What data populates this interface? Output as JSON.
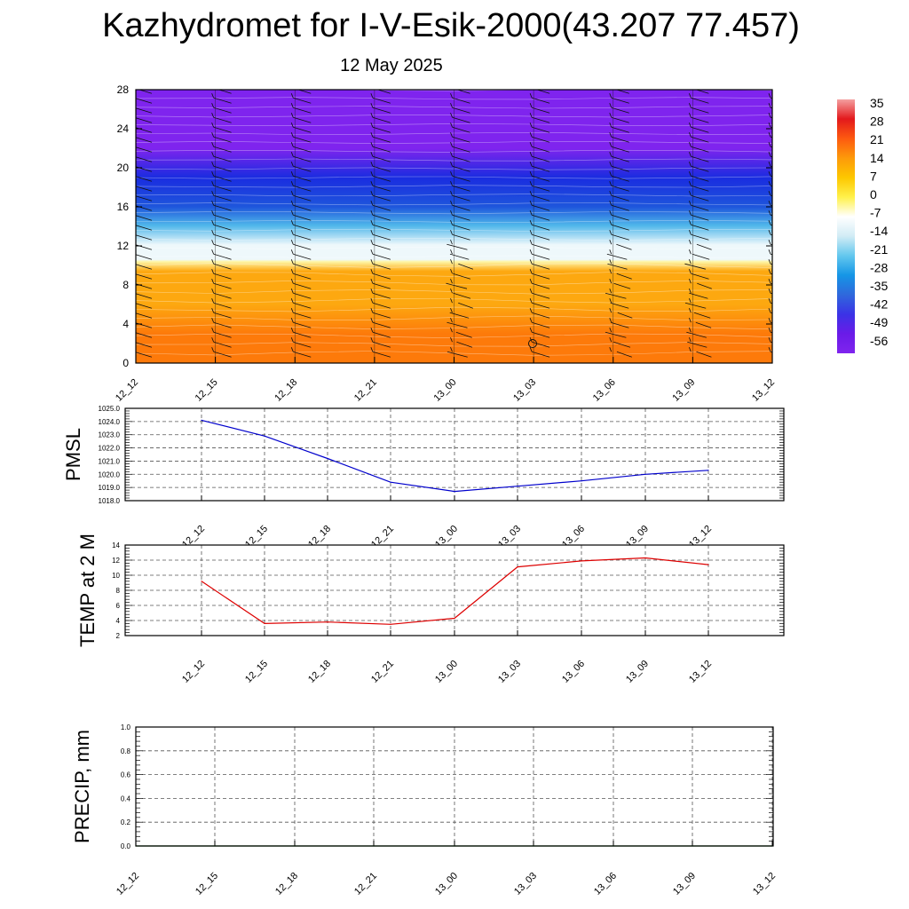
{
  "title": "Kazhydromet for I-V-Esik-2000(43.207 77.457)",
  "date": "12 May 2025",
  "chart_data": [
    {
      "type": "heatmap",
      "name": "cross-section",
      "title": "",
      "xlabel": "",
      "ylabel": "",
      "x_ticks": [
        "12_12",
        "12_15",
        "12_18",
        "12_21",
        "13_00",
        "13_03",
        "13_06",
        "13_09",
        "13_12"
      ],
      "y_ticks": [
        0,
        4,
        8,
        12,
        16,
        20,
        24,
        28
      ],
      "ylim": [
        0,
        28
      ],
      "freezing_level": 10.6,
      "colorbar": {
        "labels": [
          "35",
          "28",
          "21",
          "14",
          "7",
          "0",
          "-7",
          "-14",
          "-21",
          "-28",
          "-35",
          "-42",
          "-49",
          "-56"
        ],
        "colors": [
          "#f4a0a0",
          "#e3191c",
          "#fd5a10",
          "#fd9a0a",
          "#fdc700",
          "#fff14b",
          "#ffffff",
          "#d2ecf5",
          "#64c8ee",
          "#1596e6",
          "#2f68dc",
          "#3b33e6",
          "#6a1be8",
          "#7f24ee"
        ]
      },
      "fill_colors": {
        "bottom": "#fd7a0a",
        "lower": "#fda810",
        "near_zero": "#fef6a8",
        "freezing": "#eef8fb",
        "cold": "#4fb6ea",
        "colder": "#1e56dc",
        "coldest": "#1a2ce0",
        "top": "#7f24ee"
      }
    },
    {
      "type": "line",
      "name": "pmsl",
      "ylabel": "PMSL",
      "categories": [
        "12_12",
        "12_15",
        "12_18",
        "12_21",
        "13_00",
        "13_03",
        "13_06",
        "13_09",
        "13_12"
      ],
      "series": [
        {
          "values": [
            1024.1,
            1022.9,
            1021.2,
            1019.4,
            1018.7,
            1019.1,
            1019.5,
            1020.0,
            1020.3
          ],
          "color": "#0000cc"
        }
      ],
      "ylim": [
        1018.0,
        1025.0
      ],
      "y_ticks": [
        "1018.0",
        "1019.0",
        "1020.0",
        "1021.0",
        "1022.0",
        "1023.0",
        "1024.0",
        "1025.0"
      ],
      "grid": true
    },
    {
      "type": "line",
      "name": "temp",
      "ylabel": "TEMP at 2 M",
      "categories": [
        "12_12",
        "12_15",
        "12_18",
        "12_21",
        "13_00",
        "13_03",
        "13_06",
        "13_09",
        "13_12"
      ],
      "series": [
        {
          "values": [
            9.2,
            3.6,
            3.8,
            3.5,
            4.3,
            11.1,
            11.9,
            12.3,
            11.4
          ],
          "color": "#dd0000"
        }
      ],
      "ylim": [
        2,
        14
      ],
      "y_ticks": [
        "2",
        "4",
        "6",
        "8",
        "10",
        "12",
        "14"
      ],
      "grid": true
    },
    {
      "type": "line",
      "name": "precip",
      "ylabel": "PRECIP, mm",
      "categories": [
        "12_12",
        "12_15",
        "12_18",
        "12_21",
        "13_00",
        "13_03",
        "13_06",
        "13_09",
        "13_12"
      ],
      "series": [
        {
          "values": [
            0,
            0,
            0,
            0,
            0,
            0,
            0,
            0,
            0
          ],
          "color": "#006400"
        }
      ],
      "ylim": [
        0.0,
        1.0
      ],
      "y_ticks": [
        "0.0",
        "0.2",
        "0.4",
        "0.6",
        "0.8",
        "1.0"
      ],
      "grid": true
    }
  ]
}
